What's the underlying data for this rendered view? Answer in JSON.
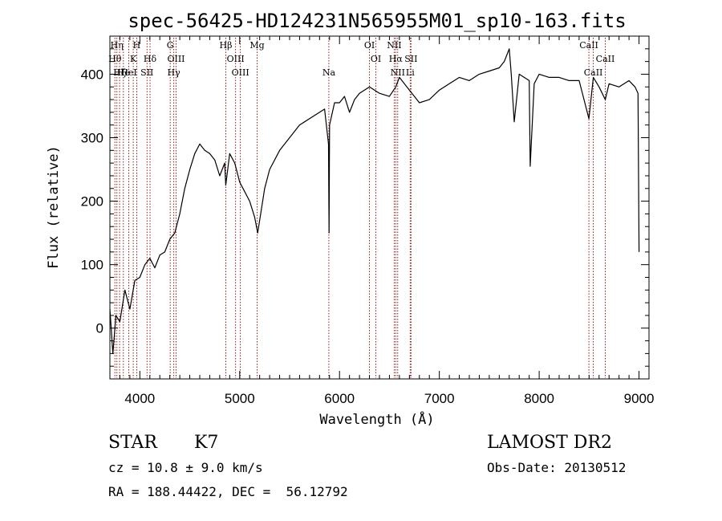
{
  "chart_data": {
    "type": "line",
    "title": "spec-56425-HD124231N565955M01_sp10-163.fits",
    "xlabel": "Wavelength (Å)",
    "ylabel": "Flux (relative)",
    "xlim": [
      3700,
      9100
    ],
    "ylim": [
      -80,
      460
    ],
    "x_ticks": [
      4000,
      5000,
      6000,
      7000,
      8000,
      9000
    ],
    "y_ticks": [
      0,
      100,
      200,
      300,
      400
    ],
    "colors": {
      "spectrum": "#000000",
      "line_markers": "#8b0000"
    },
    "series": [
      {
        "x": [
          3700,
          3730,
          3760,
          3800,
          3850,
          3900,
          3950,
          4000,
          4050,
          4100,
          4150,
          4200,
          4250,
          4300,
          4350,
          4400,
          4450,
          4500,
          4550,
          4600,
          4650,
          4700,
          4750,
          4800,
          4850,
          4860,
          4900,
          4950,
          5000,
          5050,
          5100,
          5150,
          5180,
          5200,
          5250,
          5300,
          5400,
          5500,
          5600,
          5700,
          5800,
          5850,
          5890,
          5895,
          5900,
          5950,
          6000,
          6050,
          6100,
          6150,
          6200,
          6300,
          6400,
          6500,
          6563,
          6600,
          6700,
          6800,
          6900,
          7000,
          7100,
          7200,
          7300,
          7400,
          7500,
          7600,
          7650,
          7700,
          7720,
          7750,
          7800,
          7850,
          7900,
          7910,
          7950,
          8000,
          8100,
          8200,
          8300,
          8400,
          8498,
          8542,
          8600,
          8662,
          8700,
          8800,
          8900,
          8960,
          8990,
          9000
        ],
        "y": [
          30,
          -40,
          20,
          10,
          60,
          30,
          75,
          80,
          100,
          110,
          95,
          115,
          120,
          140,
          150,
          180,
          220,
          250,
          275,
          290,
          280,
          275,
          265,
          240,
          260,
          225,
          275,
          260,
          230,
          215,
          200,
          175,
          150,
          170,
          220,
          250,
          280,
          300,
          320,
          330,
          340,
          345,
          290,
          150,
          320,
          355,
          355,
          365,
          340,
          360,
          370,
          380,
          370,
          365,
          380,
          395,
          375,
          355,
          360,
          375,
          385,
          395,
          390,
          400,
          405,
          410,
          420,
          440,
          400,
          325,
          400,
          395,
          390,
          255,
          385,
          400,
          395,
          395,
          390,
          390,
          330,
          395,
          380,
          360,
          385,
          380,
          390,
          380,
          370,
          120
        ]
      }
    ],
    "line_markers": [
      {
        "x": 3750,
        "label": "Hθ",
        "row": 1
      },
      {
        "x": 3770,
        "label": "Hη",
        "row": 0
      },
      {
        "x": 3797,
        "label": "Hζ",
        "row": 2
      },
      {
        "x": 3835,
        "label": "He",
        "row": 2
      },
      {
        "x": 3889,
        "label": "HeI",
        "row": 2
      },
      {
        "x": 3934,
        "label": "K",
        "row": 1
      },
      {
        "x": 3969,
        "label": "H",
        "row": 0
      },
      {
        "x": 4072,
        "label": "SII",
        "row": 2
      },
      {
        "x": 4102,
        "label": "Hδ",
        "row": 1
      },
      {
        "x": 4304,
        "label": "G",
        "row": 0
      },
      {
        "x": 4340,
        "label": "Hγ",
        "row": 2
      },
      {
        "x": 4363,
        "label": "OIII",
        "row": 1
      },
      {
        "x": 4861,
        "label": "Hβ",
        "row": 0
      },
      {
        "x": 4959,
        "label": "OIII",
        "row": 1
      },
      {
        "x": 5007,
        "label": "OIII",
        "row": 2
      },
      {
        "x": 5175,
        "label": "Mg",
        "row": 0
      },
      {
        "x": 5893,
        "label": "Na",
        "row": 2
      },
      {
        "x": 6300,
        "label": "OI",
        "row": 0
      },
      {
        "x": 6364,
        "label": "OI",
        "row": 1
      },
      {
        "x": 6548,
        "label": "NII",
        "row": 0
      },
      {
        "x": 6563,
        "label": "Hα",
        "row": 1
      },
      {
        "x": 6583,
        "label": "NII",
        "row": 2
      },
      {
        "x": 6708,
        "label": "Li",
        "row": 2
      },
      {
        "x": 6716,
        "label": "SII",
        "row": 1
      },
      {
        "x": 8498,
        "label": "CaII",
        "row": 0
      },
      {
        "x": 8542,
        "label": "CaII",
        "row": 2
      },
      {
        "x": 8662,
        "label": "CaII",
        "row": 1
      }
    ]
  },
  "info": {
    "object_class": "STAR",
    "subclass": "K7",
    "survey": "LAMOST DR2",
    "redshift": "cz = 10.8 ± 9.0 km/s",
    "obs_date": "Obs-Date: 20130512",
    "coordinates": "RA = 188.44422, DEC =  56.12792"
  }
}
